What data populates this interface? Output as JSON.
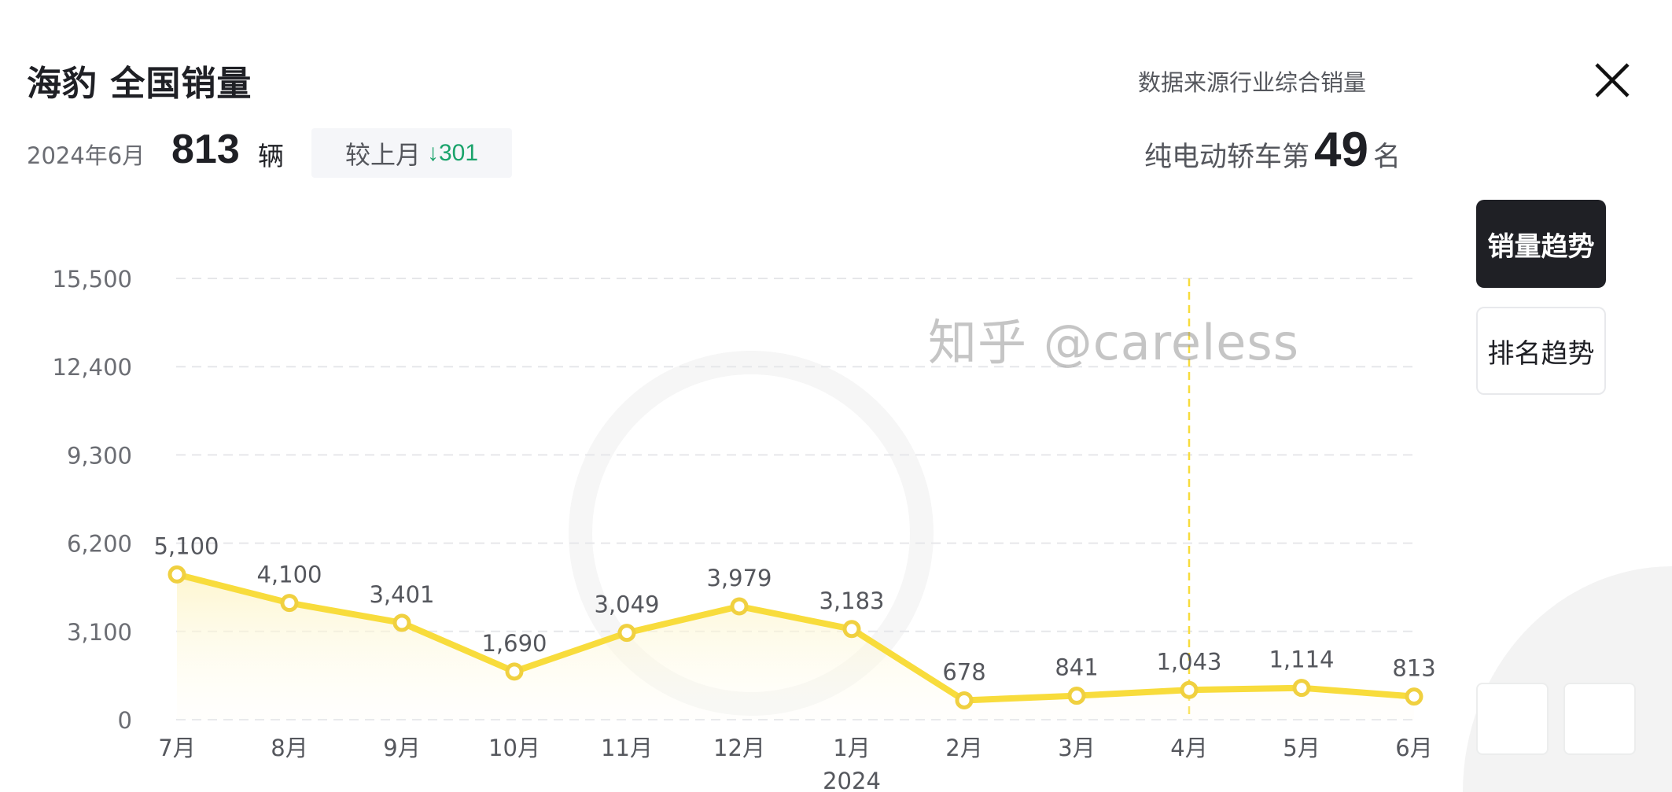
{
  "header": {
    "title": "海豹 全国销量",
    "period": "2024年6月",
    "value": "813",
    "unit": "辆",
    "compare_label": "较上月",
    "compare_arrow": "↓",
    "compare_value": "301",
    "source": "数据来源行业综合销量",
    "rank_prefix": "纯电动轿车第",
    "rank_value": "49",
    "rank_suffix": "名",
    "close_icon": "close-x-icon"
  },
  "side_tabs": [
    {
      "label": "销量趋势",
      "active": true
    },
    {
      "label": "排名趋势",
      "active": false
    }
  ],
  "watermark": "知乎 @careless",
  "colors": {
    "line": "#f8dc3c",
    "marker_stroke": "#f0d040",
    "down": "#1aa36b",
    "active_tab": "#1f2025"
  },
  "chart_data": {
    "type": "line",
    "categories": [
      "7月",
      "8月",
      "9月",
      "10月",
      "11月",
      "12月",
      "1月",
      "2月",
      "3月",
      "4月",
      "5月",
      "6月"
    ],
    "year_label": "2024",
    "values": [
      5100,
      4100,
      3401,
      1690,
      3049,
      3979,
      3183,
      678,
      841,
      1043,
      1114,
      813
    ],
    "data_labels": [
      "5,100",
      "4,100",
      "3,401",
      "1,690",
      "3,049",
      "3,979",
      "3,183",
      "678",
      "841",
      "1,043",
      "1,114",
      "813"
    ],
    "yticks": [
      "0",
      "3,100",
      "6,200",
      "9,300",
      "12,400",
      "15,500"
    ],
    "ytick_values": [
      0,
      3100,
      6200,
      9300,
      12400,
      15500
    ],
    "ylim": [
      0,
      15500
    ],
    "grid": true,
    "highlight_category": "4月",
    "area_fill": true
  }
}
